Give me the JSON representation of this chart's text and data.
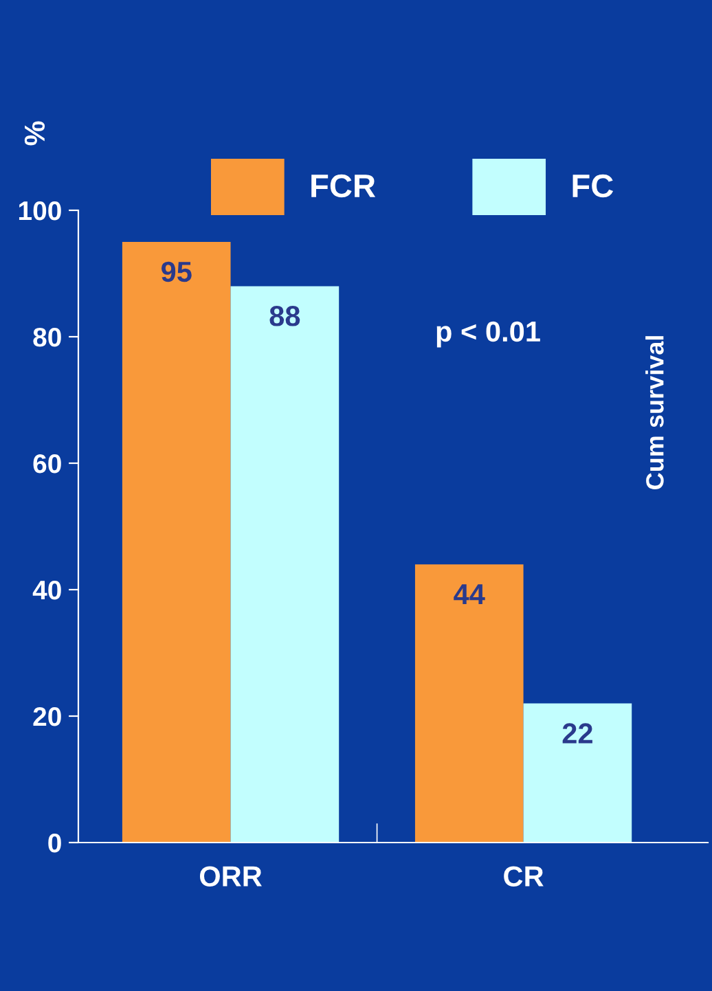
{
  "chart_data": {
    "type": "bar",
    "ylabel": "%",
    "categories": [
      "ORR",
      "CR"
    ],
    "series": [
      {
        "name": "FCR",
        "color": "#f9993a",
        "values": [
          95,
          44
        ]
      },
      {
        "name": "FC",
        "color": "#c2fefe",
        "values": [
          88,
          22
        ]
      }
    ],
    "ylim": [
      0,
      100
    ],
    "yticks": [
      0,
      20,
      40,
      60,
      80,
      100
    ],
    "grid": false,
    "legend": "top",
    "data_labels": true,
    "annotations": [
      "p < 0.01",
      "Cum survival"
    ]
  }
}
